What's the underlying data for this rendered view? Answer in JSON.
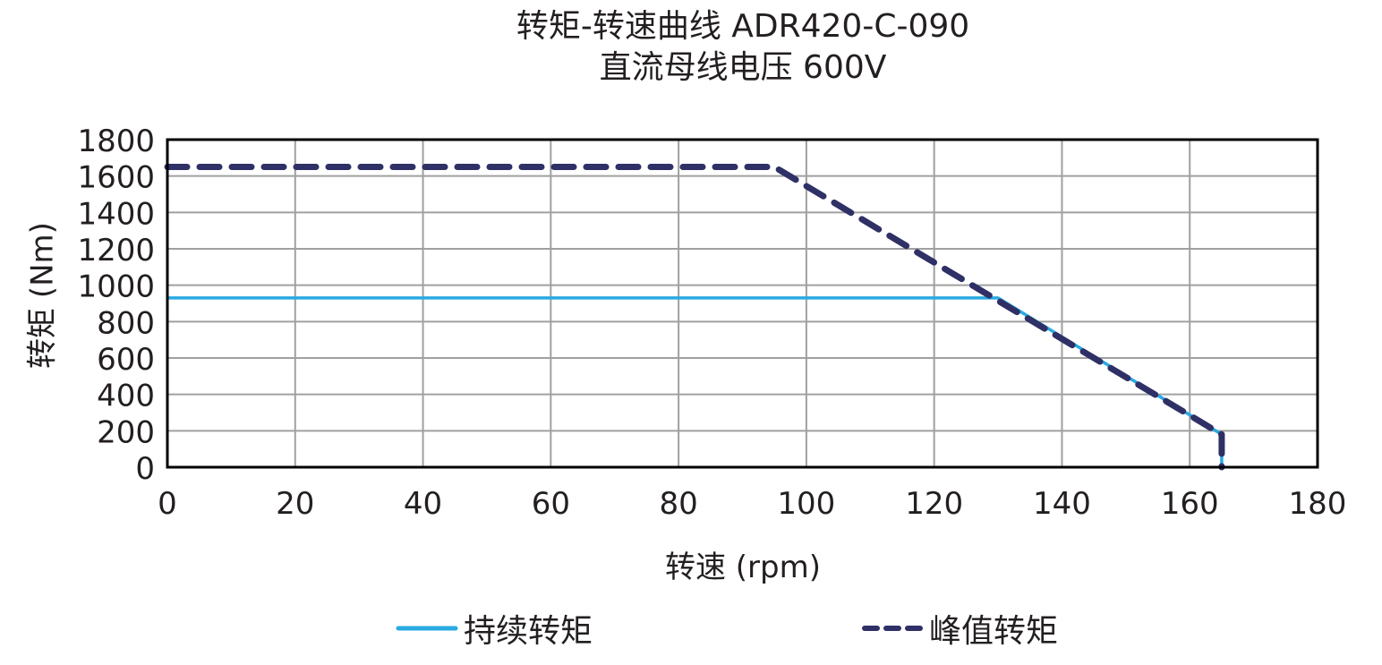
{
  "title": {
    "line1": "转矩-转速曲线 ADR420-C-090",
    "line2": "直流母线电压 600V"
  },
  "colors": {
    "continuous": "#29aae1",
    "peak": "#2e3066",
    "grid": "#a0a0a0",
    "frame": "#000000"
  },
  "chart_data": {
    "type": "line",
    "title": "转矩-转速曲线 ADR420-C-090 / 直流母线电压 600V",
    "xlabel": "转速 (rpm)",
    "ylabel": "转矩 (Nm)",
    "xlim": [
      0,
      180
    ],
    "ylim": [
      0,
      1800
    ],
    "xticks": [
      0,
      20,
      40,
      60,
      80,
      100,
      120,
      140,
      160,
      180
    ],
    "yticks": [
      0,
      200,
      400,
      600,
      800,
      1000,
      1200,
      1400,
      1600,
      1800
    ],
    "grid": true,
    "legend_position": "bottom",
    "series": [
      {
        "name": "持续转矩",
        "style": "solid",
        "color": "#29aae1",
        "x": [
          0,
          130,
          165,
          165
        ],
        "y": [
          930,
          930,
          180,
          0
        ]
      },
      {
        "name": "峰值转矩",
        "style": "dashed",
        "color": "#2e3066",
        "x": [
          0,
          95,
          165,
          165
        ],
        "y": [
          1650,
          1650,
          180,
          0
        ]
      }
    ]
  },
  "legend": {
    "continuous_label": "持续转矩",
    "peak_label": "峰值转矩"
  }
}
